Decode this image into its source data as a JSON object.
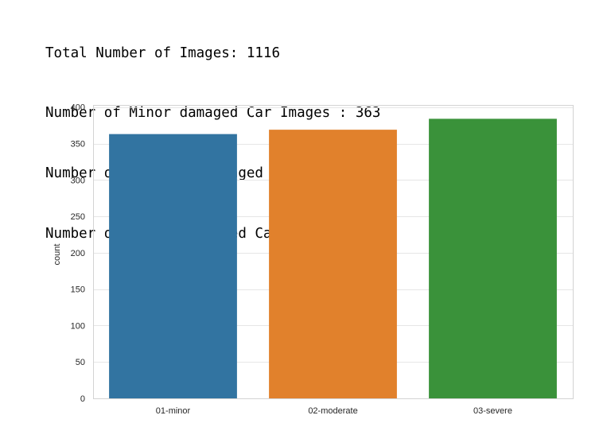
{
  "output": {
    "lines": [
      "Total Number of Images: 1116",
      "Number of Minor damaged Car Images : 363",
      "Number of Moderate damaged Car Images: 369",
      "Number of Severe damaged Car Images: 384"
    ]
  },
  "chart_data": {
    "type": "bar",
    "categories": [
      "01-minor",
      "02-moderate",
      "03-severe"
    ],
    "values": [
      363,
      369,
      384
    ],
    "colors": [
      "#3274a1",
      "#e1812c",
      "#3a923a"
    ],
    "title": "",
    "xlabel": "",
    "ylabel": "count",
    "ylim": [
      0,
      403
    ],
    "yticks": [
      0,
      50,
      100,
      150,
      200,
      250,
      300,
      350,
      400
    ],
    "grid": true,
    "style": "seaborn-whitegrid"
  }
}
